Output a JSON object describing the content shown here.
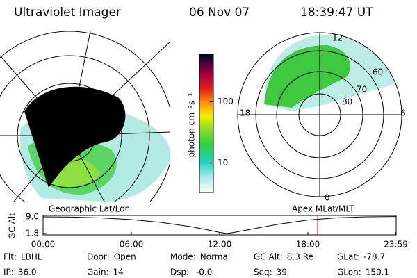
{
  "header": {
    "title": "Ultraviolet Imager",
    "date": "06 Nov 07",
    "time": "18:39:47 UT"
  },
  "colorbar": {
    "label": "photon cm⁻²s⁻¹",
    "log": true,
    "lim": [
      3.3,
      600
    ],
    "ticks": [
      10,
      100
    ]
  },
  "polar": {
    "labels": [
      "12",
      "18",
      "6",
      "0",
      "60",
      "70",
      "80"
    ]
  },
  "altitude": {
    "title_left": "Geographic Lat/Lon",
    "title_right": "Apex  MLat/MLT",
    "ylabel": "GC Alt",
    "ylim": [
      1.2,
      9.6
    ],
    "yticks": [
      {
        "value": 9.0,
        "label": "9.0"
      },
      {
        "value": 1.8,
        "label": "1.8"
      }
    ],
    "xlim": [
      0,
      24
    ],
    "xticks": [
      {
        "value": 0,
        "label": "00:00"
      },
      {
        "value": 6,
        "label": "06:00"
      },
      {
        "value": 12,
        "label": "12:00"
      },
      {
        "value": 18,
        "label": "18:00"
      },
      {
        "value": 23.98,
        "label": "23:59"
      }
    ],
    "x": [
      0,
      2,
      4,
      6,
      8,
      10,
      11,
      12,
      12.5,
      13,
      14,
      16,
      18,
      20,
      22,
      23.98
    ],
    "values": [
      9.0,
      8.9,
      8.5,
      7.8,
      6.6,
      4.8,
      3.6,
      2.3,
      1.8,
      2.3,
      3.5,
      5.8,
      7.6,
      8.6,
      9.0,
      9.1
    ],
    "color": "#000000",
    "current_time": 18.66,
    "current_color": "#ff0000"
  },
  "footer": [
    [
      {
        "label": "Flt:",
        "value": "LBHL"
      },
      {
        "label": "Door:",
        "value": "Open"
      },
      {
        "label": "Mode:",
        "value": "Normal"
      },
      {
        "label": "GC Alt:",
        "value": "8.3 Re"
      },
      {
        "label": "GLat:",
        "value": "-78.7"
      }
    ],
    [
      {
        "label": "IP:",
        "value": "36.0"
      },
      {
        "label": "Gain:",
        "value": "14"
      },
      {
        "label": "Dsp:",
        "value": " -0.0"
      },
      {
        "label": "Seq:",
        "value": "39"
      },
      {
        "label": "GLon:",
        "value": "150.1"
      }
    ]
  ]
}
